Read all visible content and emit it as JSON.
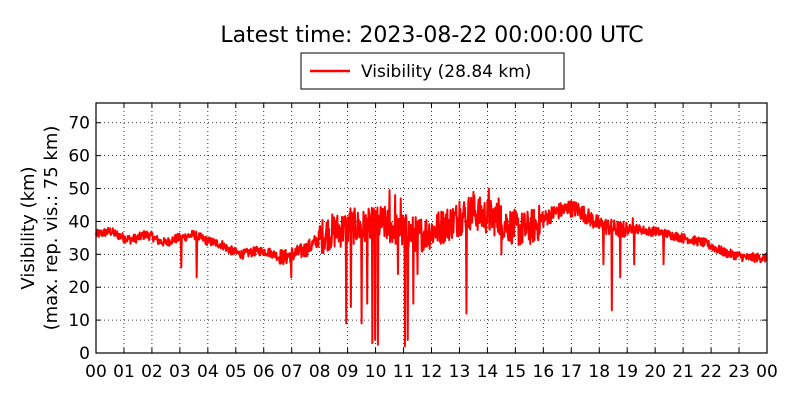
{
  "chart_data": {
    "type": "line",
    "title": "Latest time: 2023-08-22 00:00:00 UTC",
    "ylabel_line1": "Visibility (km)",
    "ylabel_line2": "(max. rep. vis.: 75 km)",
    "xlabel": "",
    "xlim": [
      0,
      24
    ],
    "ylim": [
      0,
      76
    ],
    "grid": true,
    "legend_position": "top-center",
    "x_ticks": [
      0,
      1,
      2,
      3,
      4,
      5,
      6,
      7,
      8,
      9,
      10,
      11,
      12,
      13,
      14,
      15,
      16,
      17,
      18,
      19,
      20,
      21,
      22,
      23,
      24
    ],
    "x_tick_labels": [
      "00",
      "01",
      "02",
      "03",
      "04",
      "05",
      "06",
      "07",
      "08",
      "09",
      "10",
      "11",
      "12",
      "13",
      "14",
      "15",
      "16",
      "17",
      "18",
      "19",
      "20",
      "21",
      "22",
      "23",
      "00"
    ],
    "y_ticks": [
      0,
      10,
      20,
      30,
      40,
      50,
      60,
      70
    ],
    "y_tick_labels": [
      "0",
      "10",
      "20",
      "30",
      "40",
      "50",
      "60",
      "70"
    ],
    "series": [
      {
        "name": "Visibility (28.84 km)",
        "color": "#ff0000",
        "baseline": {
          "x": [
            0,
            0.25,
            0.5,
            0.75,
            1,
            1.25,
            1.5,
            1.75,
            2,
            2.25,
            2.5,
            2.75,
            3,
            3.25,
            3.5,
            3.75,
            4,
            4.25,
            4.5,
            4.75,
            5,
            5.25,
            5.5,
            5.75,
            6,
            6.25,
            6.5,
            6.75,
            7,
            7.25,
            7.5,
            7.75,
            8,
            8.25,
            8.5,
            8.75,
            9,
            9.25,
            9.5,
            9.75,
            10,
            10.25,
            10.5,
            10.75,
            11,
            11.25,
            11.5,
            11.75,
            12,
            12.25,
            12.5,
            12.75,
            13,
            13.25,
            13.5,
            13.75,
            14,
            14.25,
            14.5,
            14.75,
            15,
            15.25,
            15.5,
            15.75,
            16,
            16.25,
            16.5,
            16.75,
            17,
            17.25,
            17.5,
            17.75,
            18,
            18.25,
            18.5,
            18.75,
            19,
            19.25,
            19.5,
            19.75,
            20,
            20.25,
            20.5,
            20.75,
            21,
            21.25,
            21.5,
            21.75,
            22,
            22.25,
            22.5,
            22.75,
            23,
            23.25,
            23.5,
            23.75,
            24
          ],
          "y": [
            36,
            36.5,
            37,
            36,
            35,
            34.5,
            35,
            36,
            35.5,
            34,
            33.5,
            34.5,
            35,
            35.5,
            36,
            35,
            34,
            33.5,
            33,
            31.5,
            30.5,
            30,
            30.5,
            31,
            31,
            30.5,
            29.5,
            29,
            30,
            30.5,
            31.5,
            33,
            35,
            36.5,
            37,
            37.5,
            38,
            38.5,
            38,
            38.5,
            39,
            39.5,
            38.5,
            38,
            37,
            36.5,
            36,
            36.5,
            37,
            38,
            39,
            40,
            41,
            42.5,
            43,
            42,
            41.5,
            41,
            40,
            39,
            38,
            37.5,
            38,
            39,
            40.5,
            42,
            43,
            43.5,
            44,
            43.5,
            42,
            40.5,
            39,
            38.5,
            38,
            37.5,
            37.5,
            38,
            37.5,
            37,
            37,
            36.5,
            36,
            35.5,
            35,
            34.5,
            34,
            33.5,
            32.5,
            31.5,
            30.5,
            30,
            29.5,
            29,
            29,
            29,
            28.84
          ]
        },
        "dips": [
          {
            "x": 3.05,
            "y": 26
          },
          {
            "x": 3.6,
            "y": 23
          },
          {
            "x": 6.98,
            "y": 23
          },
          {
            "x": 8.95,
            "y": 9
          },
          {
            "x": 9.12,
            "y": 14
          },
          {
            "x": 9.5,
            "y": 9
          },
          {
            "x": 9.7,
            "y": 15
          },
          {
            "x": 9.88,
            "y": 3
          },
          {
            "x": 9.98,
            "y": 4
          },
          {
            "x": 10.08,
            "y": 2.5
          },
          {
            "x": 10.5,
            "y": 22
          },
          {
            "x": 10.8,
            "y": 24
          },
          {
            "x": 11.05,
            "y": 2
          },
          {
            "x": 11.15,
            "y": 4
          },
          {
            "x": 11.35,
            "y": 15
          },
          {
            "x": 11.5,
            "y": 24
          },
          {
            "x": 13.0,
            "y": 12
          },
          {
            "x": 13.25,
            "y": 12
          },
          {
            "x": 14.5,
            "y": 30
          },
          {
            "x": 18.15,
            "y": 27
          },
          {
            "x": 18.45,
            "y": 13
          },
          {
            "x": 18.75,
            "y": 23
          },
          {
            "x": 19.25,
            "y": 27
          },
          {
            "x": 20.3,
            "y": 27
          }
        ],
        "spikes": [
          {
            "x": 9.1,
            "y": 44
          },
          {
            "x": 10.5,
            "y": 49.5
          },
          {
            "x": 10.7,
            "y": 48
          },
          {
            "x": 10.9,
            "y": 47
          },
          {
            "x": 13.0,
            "y": 46
          },
          {
            "x": 13.5,
            "y": 49
          },
          {
            "x": 14.05,
            "y": 50
          },
          {
            "x": 14.4,
            "y": 47
          },
          {
            "x": 16.9,
            "y": 46
          },
          {
            "x": 19.2,
            "y": 41
          }
        ]
      }
    ]
  }
}
